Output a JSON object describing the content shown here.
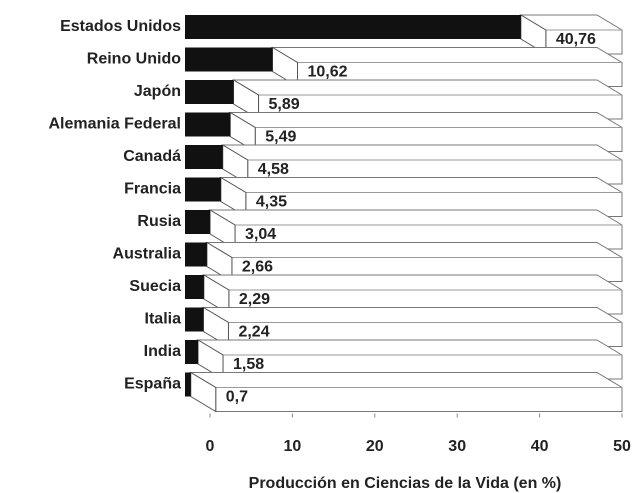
{
  "chart_data": {
    "type": "bar3d_horizontal",
    "categories": [
      "Estados Unidos",
      "Reino Unido",
      "Japón",
      "Alemania Federal",
      "Canadá",
      "Francia",
      "Rusia",
      "Australia",
      "Suecia",
      "Italia",
      "India",
      "España"
    ],
    "values": [
      40.76,
      10.62,
      5.89,
      5.49,
      4.58,
      4.35,
      3.04,
      2.66,
      2.29,
      2.24,
      1.58,
      0.7
    ],
    "value_labels": [
      "40,76",
      "10,62",
      "5,89",
      "5,49",
      "4,58",
      "4,35",
      "3,04",
      "2,66",
      "2,29",
      "2,24",
      "1,58",
      "0,7"
    ],
    "color": "#111111",
    "xlim": [
      0,
      50
    ],
    "xticks": [
      0,
      10,
      20,
      30,
      40,
      50
    ],
    "xlabel": "Producción en Ciencias de la Vida (en %)"
  }
}
